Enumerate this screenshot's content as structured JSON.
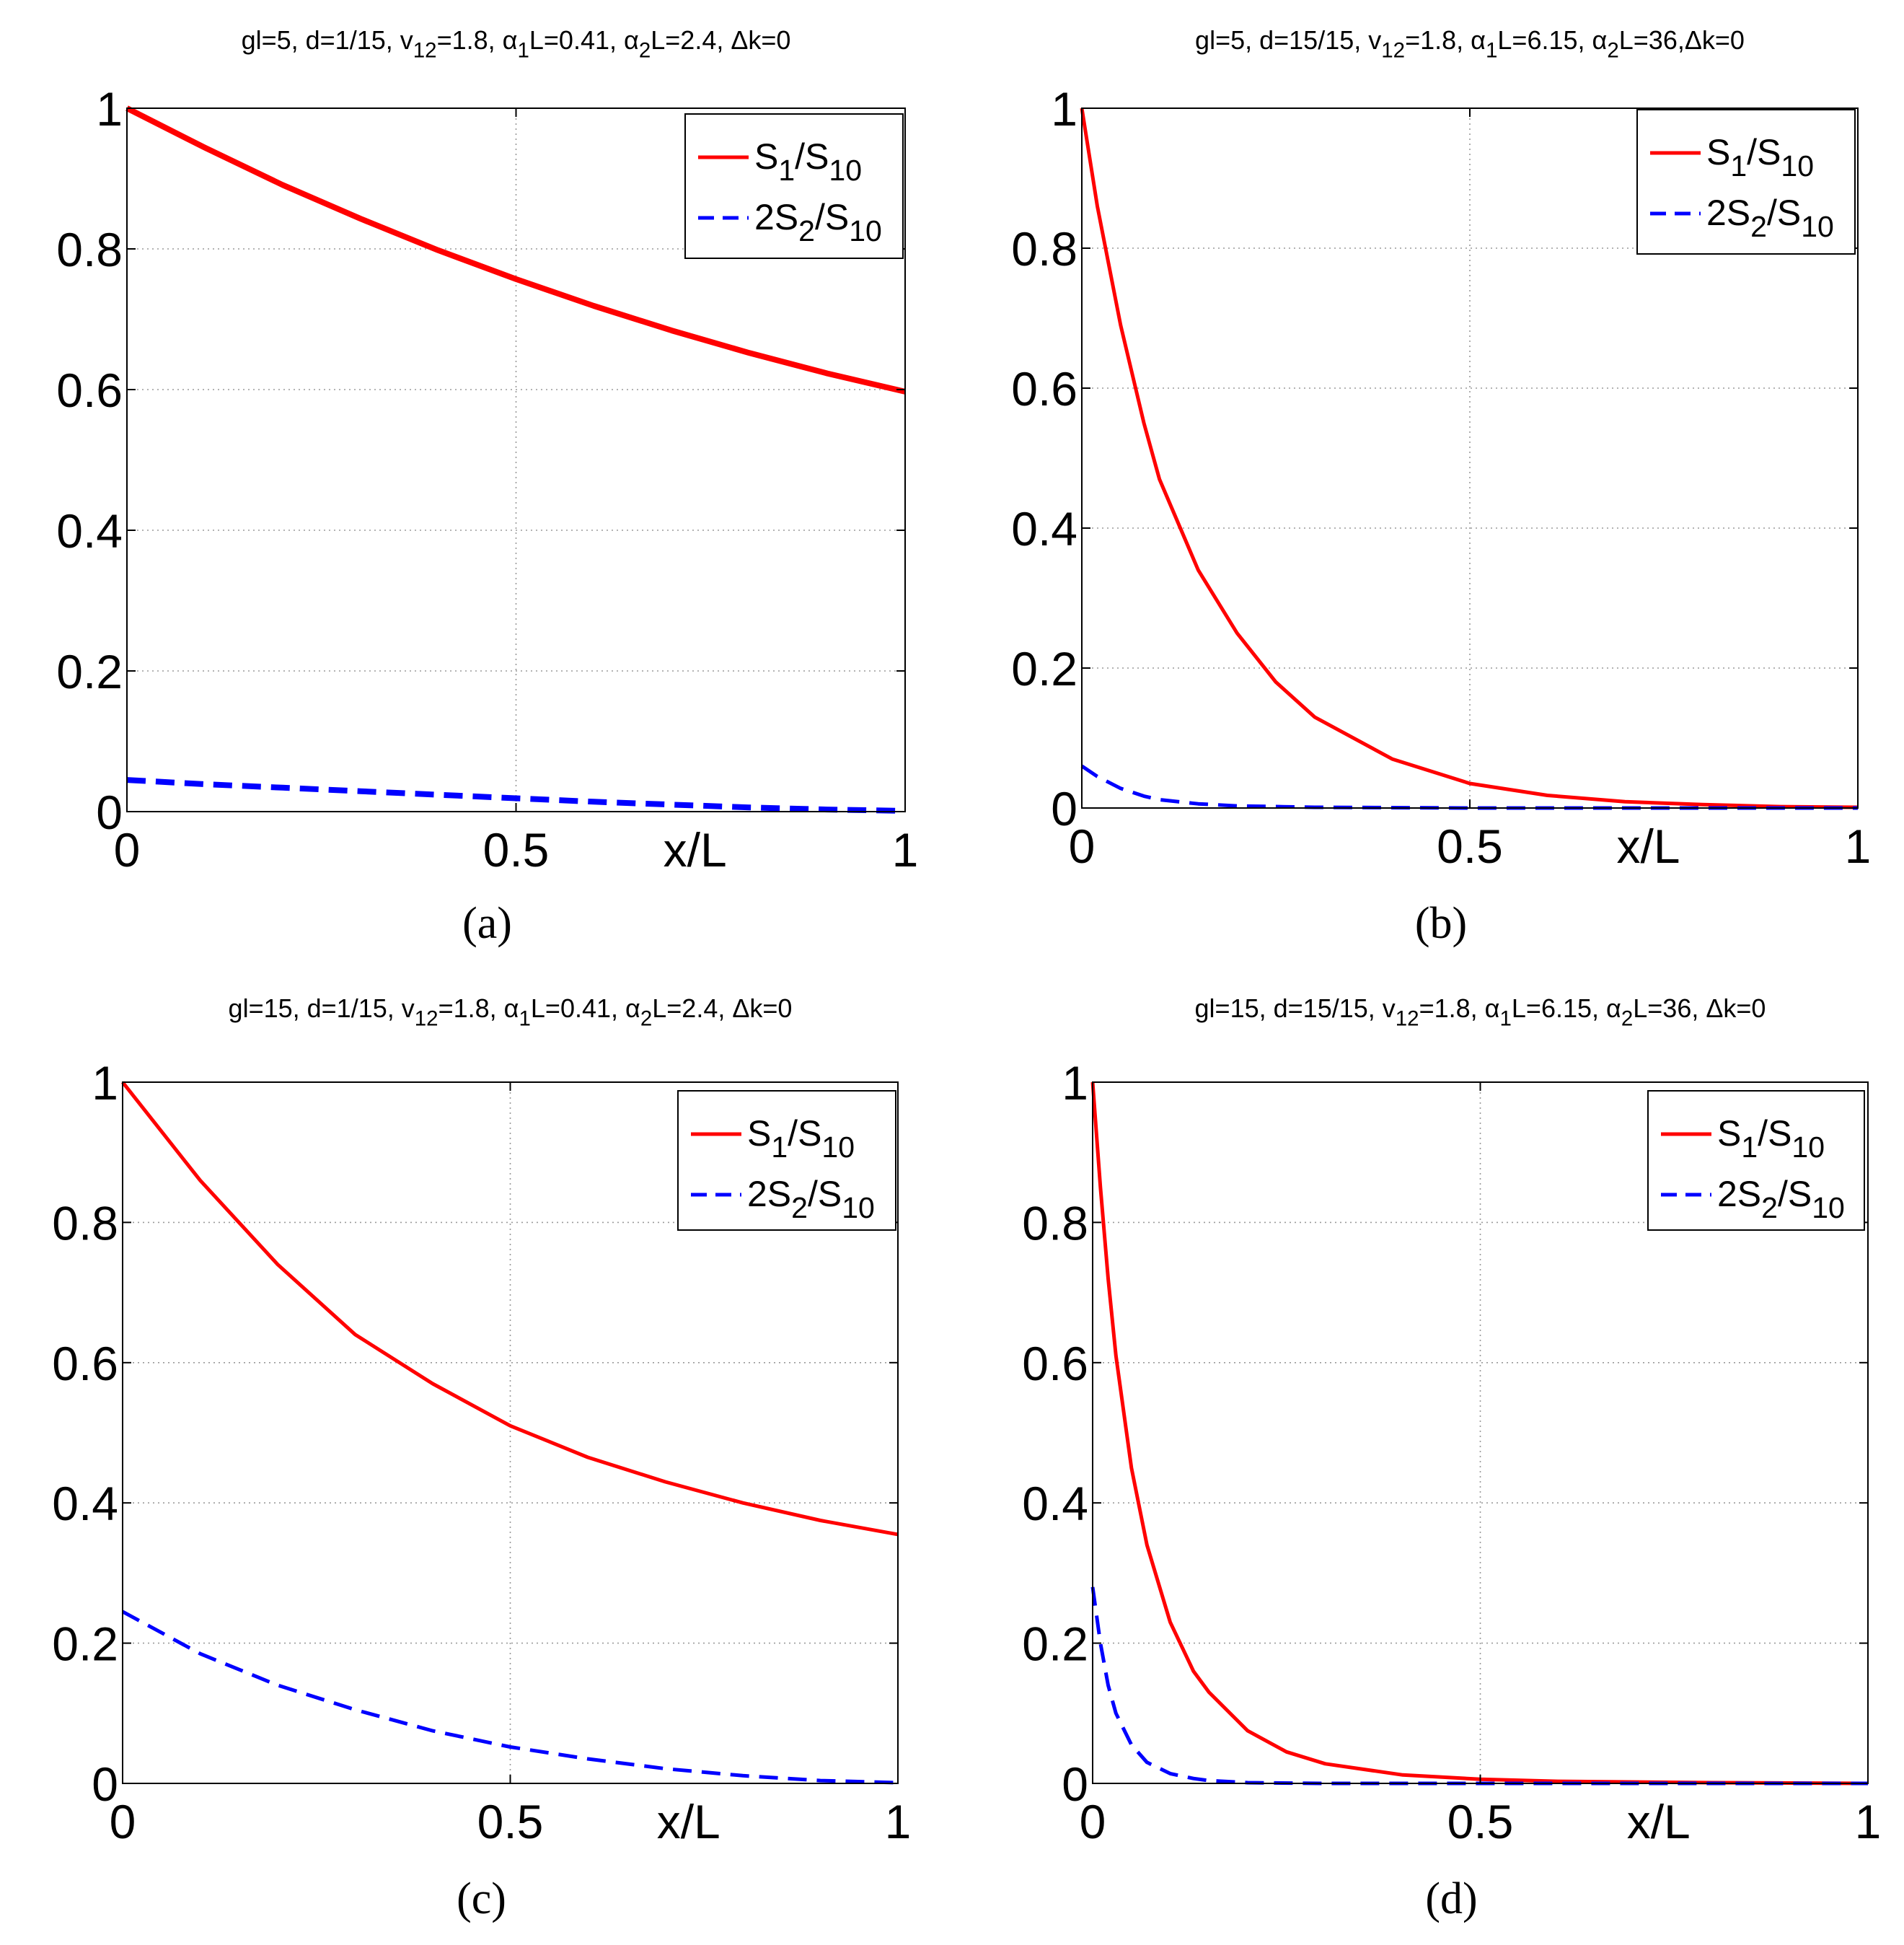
{
  "chart_data": [
    {
      "type": "line",
      "panel": "(a)",
      "title": {
        "main": "gl=5, d=1/15, v",
        "parts": [
          {
            "t": "gl=5, d=1/15, v"
          },
          {
            "t": "12",
            "sub": true
          },
          {
            "t": "=1.8, α"
          },
          {
            "t": "1",
            "sub": true
          },
          {
            "t": "L=0.41, α"
          },
          {
            "t": "2",
            "sub": true
          },
          {
            "t": "L=2.4, Δk=0"
          }
        ]
      },
      "xlabel": "x/L",
      "ylabel": "",
      "xlim": [
        0,
        1
      ],
      "ylim": [
        0,
        1
      ],
      "xticks": [
        "0",
        "0.5",
        "1"
      ],
      "yticks": [
        "0",
        "0.2",
        "0.4",
        "0.6",
        "0.8",
        "1"
      ],
      "grid": true,
      "legend": "top-right",
      "line_weight": "thick",
      "series": [
        {
          "name": "S1/S10",
          "legend_parts": [
            {
              "t": "S"
            },
            {
              "t": "1",
              "sub": true
            },
            {
              "t": "/S"
            },
            {
              "t": "10",
              "sub": true
            }
          ],
          "style": "solid",
          "color": "#ff0000",
          "x": [
            0,
            0.1,
            0.2,
            0.3,
            0.4,
            0.5,
            0.6,
            0.7,
            0.8,
            0.9,
            1.0
          ],
          "y": [
            1.0,
            0.944,
            0.891,
            0.843,
            0.798,
            0.757,
            0.719,
            0.684,
            0.652,
            0.623,
            0.597
          ]
        },
        {
          "name": "2S2/S10",
          "legend_parts": [
            {
              "t": "2S"
            },
            {
              "t": "2",
              "sub": true
            },
            {
              "t": "/S"
            },
            {
              "t": "10",
              "sub": true
            }
          ],
          "style": "dashed",
          "color": "#0000ff",
          "x": [
            0,
            0.1,
            0.2,
            0.3,
            0.4,
            0.5,
            0.6,
            0.7,
            0.8,
            0.9,
            1.0
          ],
          "y": [
            0.045,
            0.039,
            0.034,
            0.029,
            0.024,
            0.019,
            0.014,
            0.01,
            0.006,
            0.003,
            0.001
          ]
        }
      ]
    },
    {
      "type": "line",
      "panel": "(b)",
      "title": {
        "main": "gl=5, d=15/15, v",
        "parts": [
          {
            "t": "gl=5, d=15/15, v"
          },
          {
            "t": "12",
            "sub": true
          },
          {
            "t": "=1.8, α"
          },
          {
            "t": "1",
            "sub": true
          },
          {
            "t": "L=6.15, α"
          },
          {
            "t": "2",
            "sub": true
          },
          {
            "t": "L=36,Δk=0"
          }
        ]
      },
      "xlabel": "x/L",
      "ylabel": "",
      "xlim": [
        0,
        1
      ],
      "ylim": [
        0,
        1
      ],
      "xticks": [
        "0",
        "0.5",
        "1"
      ],
      "yticks": [
        "0",
        "0.2",
        "0.4",
        "0.6",
        "0.8",
        "1"
      ],
      "grid": true,
      "legend": "top-right",
      "line_weight": "normal",
      "series": [
        {
          "name": "S1/S10",
          "legend_parts": [
            {
              "t": "S"
            },
            {
              "t": "1",
              "sub": true
            },
            {
              "t": "/S"
            },
            {
              "t": "10",
              "sub": true
            }
          ],
          "style": "solid",
          "color": "#ff0000",
          "x": [
            0,
            0.02,
            0.05,
            0.08,
            0.1,
            0.15,
            0.2,
            0.25,
            0.3,
            0.4,
            0.5,
            0.6,
            0.7,
            0.8,
            0.9,
            1.0
          ],
          "y": [
            1.0,
            0.86,
            0.69,
            0.55,
            0.47,
            0.34,
            0.25,
            0.18,
            0.13,
            0.07,
            0.035,
            0.018,
            0.009,
            0.005,
            0.002,
            0.001
          ]
        },
        {
          "name": "2S2/S10",
          "legend_parts": [
            {
              "t": "2S"
            },
            {
              "t": "2",
              "sub": true
            },
            {
              "t": "/S"
            },
            {
              "t": "10",
              "sub": true
            }
          ],
          "style": "dashed",
          "color": "#0000ff",
          "x": [
            0,
            0.02,
            0.05,
            0.08,
            0.1,
            0.15,
            0.2,
            0.3,
            0.5,
            0.7,
            1.0
          ],
          "y": [
            0.06,
            0.045,
            0.028,
            0.017,
            0.012,
            0.006,
            0.003,
            0.001,
            0.0,
            0.0,
            0.0
          ]
        }
      ]
    },
    {
      "type": "line",
      "panel": "(c)",
      "title": {
        "main": "gl=15, d=1/15, v",
        "parts": [
          {
            "t": "gl=15, d=1/15, v"
          },
          {
            "t": "12",
            "sub": true
          },
          {
            "t": "=1.8, α"
          },
          {
            "t": "1",
            "sub": true
          },
          {
            "t": "L=0.41, α"
          },
          {
            "t": "2",
            "sub": true
          },
          {
            "t": "L=2.4, Δk=0"
          }
        ]
      },
      "xlabel": "x/L",
      "ylabel": "",
      "xlim": [
        0,
        1
      ],
      "ylim": [
        0,
        1
      ],
      "xticks": [
        "0",
        "0.5",
        "1"
      ],
      "yticks": [
        "0",
        "0.2",
        "0.4",
        "0.6",
        "0.8",
        "1"
      ],
      "grid": true,
      "legend": "top-right",
      "line_weight": "normal",
      "series": [
        {
          "name": "S1/S10",
          "legend_parts": [
            {
              "t": "S"
            },
            {
              "t": "1",
              "sub": true
            },
            {
              "t": "/S"
            },
            {
              "t": "10",
              "sub": true
            }
          ],
          "style": "solid",
          "color": "#ff0000",
          "x": [
            0,
            0.1,
            0.2,
            0.3,
            0.4,
            0.5,
            0.6,
            0.7,
            0.8,
            0.9,
            1.0
          ],
          "y": [
            1.0,
            0.86,
            0.74,
            0.64,
            0.57,
            0.51,
            0.465,
            0.43,
            0.4,
            0.375,
            0.355
          ]
        },
        {
          "name": "2S2/S10",
          "legend_parts": [
            {
              "t": "2S"
            },
            {
              "t": "2",
              "sub": true
            },
            {
              "t": "/S"
            },
            {
              "t": "10",
              "sub": true
            }
          ],
          "style": "dashed",
          "color": "#0000ff",
          "x": [
            0,
            0.1,
            0.2,
            0.3,
            0.4,
            0.5,
            0.6,
            0.7,
            0.8,
            0.9,
            1.0
          ],
          "y": [
            0.245,
            0.185,
            0.14,
            0.105,
            0.075,
            0.052,
            0.035,
            0.021,
            0.011,
            0.004,
            0.001
          ]
        }
      ]
    },
    {
      "type": "line",
      "panel": "(d)",
      "title": {
        "main": "gl=15, d=15/15, v",
        "parts": [
          {
            "t": "gl=15, d=15/15, v"
          },
          {
            "t": "12",
            "sub": true
          },
          {
            "t": "=1.8, α"
          },
          {
            "t": "1",
            "sub": true
          },
          {
            "t": "L=6.15, α"
          },
          {
            "t": "2",
            "sub": true
          },
          {
            "t": "L=36, Δk=0"
          }
        ]
      },
      "xlabel": "x/L",
      "ylabel": "",
      "xlim": [
        0,
        1
      ],
      "ylim": [
        0,
        1
      ],
      "xticks": [
        "0",
        "0.5",
        "1"
      ],
      "yticks": [
        "0",
        "0.2",
        "0.4",
        "0.6",
        "0.8",
        "1"
      ],
      "grid": true,
      "legend": "top-right",
      "line_weight": "normal",
      "series": [
        {
          "name": "S1/S10",
          "legend_parts": [
            {
              "t": "S"
            },
            {
              "t": "1",
              "sub": true
            },
            {
              "t": "/S"
            },
            {
              "t": "10",
              "sub": true
            }
          ],
          "style": "solid",
          "color": "#ff0000",
          "x": [
            0,
            0.01,
            0.02,
            0.03,
            0.05,
            0.07,
            0.1,
            0.13,
            0.15,
            0.2,
            0.25,
            0.3,
            0.4,
            0.5,
            0.6,
            0.8,
            1.0
          ],
          "y": [
            1.0,
            0.85,
            0.72,
            0.61,
            0.45,
            0.34,
            0.23,
            0.16,
            0.13,
            0.075,
            0.045,
            0.028,
            0.012,
            0.006,
            0.003,
            0.001,
            0.0
          ]
        },
        {
          "name": "2S2/S10",
          "legend_parts": [
            {
              "t": "2S"
            },
            {
              "t": "2",
              "sub": true
            },
            {
              "t": "/S"
            },
            {
              "t": "10",
              "sub": true
            }
          ],
          "style": "dashed",
          "color": "#0000ff",
          "x": [
            0,
            0.01,
            0.02,
            0.03,
            0.05,
            0.07,
            0.1,
            0.13,
            0.15,
            0.2,
            0.3,
            0.5,
            1.0
          ],
          "y": [
            0.28,
            0.2,
            0.14,
            0.1,
            0.055,
            0.03,
            0.014,
            0.007,
            0.004,
            0.001,
            0.0,
            0.0,
            0.0
          ]
        }
      ]
    }
  ]
}
